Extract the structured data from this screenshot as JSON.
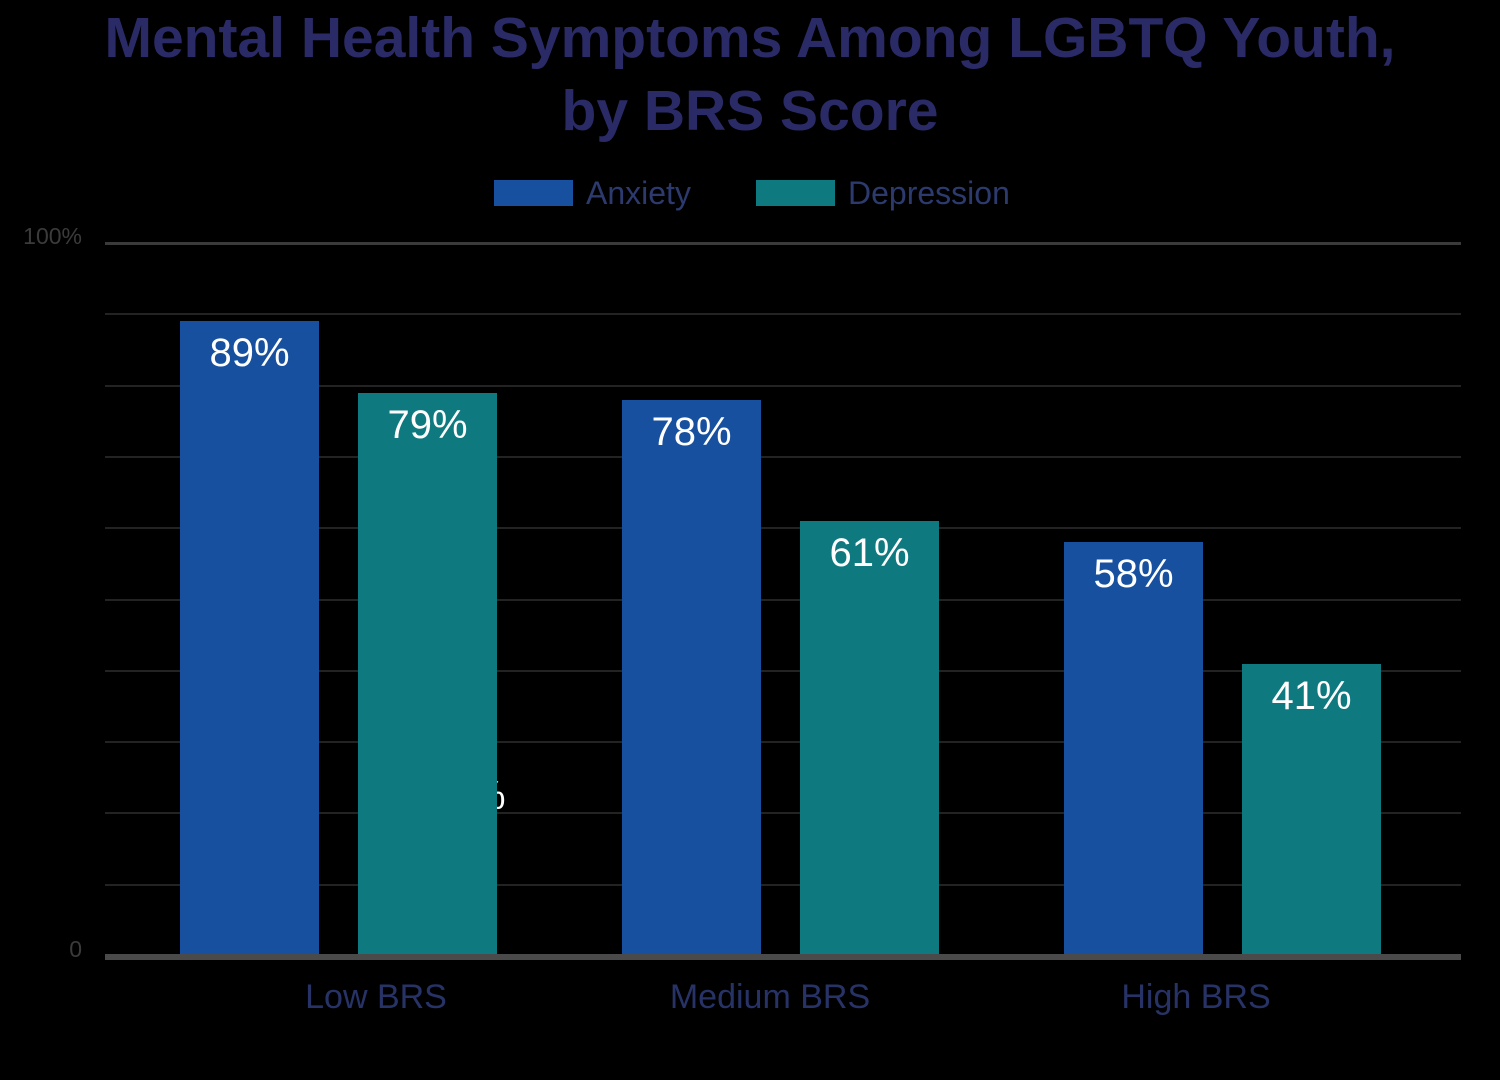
{
  "title": {
    "line1": "Mental Health Symptoms Among LGBTQ Youth,",
    "line2": "by BRS Score"
  },
  "y_axis": {
    "top_tick": "100%",
    "bottom_tick": "0"
  },
  "x_axis": {
    "labels": [
      "Low BRS",
      "Medium BRS",
      "High BRS"
    ]
  },
  "artifact": {
    "text": "%"
  },
  "colors": {
    "background": "#000000",
    "anxiety_blue": "#17509E",
    "depression_teal": "#0E7A80",
    "title_text": "#2A2A67",
    "legend_text": "#2C3A6E",
    "category_label_text": "#273366",
    "tick_label_text": "#3B3B3B",
    "data_label_text": "#FFFFFF",
    "gridline": "#232323",
    "top_gridline": "#3A3A3A",
    "axis_line": "#4A4A4A"
  },
  "chart_data": {
    "type": "bar",
    "title": "Mental Health Symptoms Among LGBTQ Youth, by BRS Score",
    "categories": [
      "Low BRS",
      "Medium BRS",
      "High BRS"
    ],
    "series": [
      {
        "name": "Anxiety",
        "color": "#17509E",
        "values": [
          89,
          78,
          58
        ]
      },
      {
        "name": "Depression",
        "color": "#0E7A80",
        "values": [
          79,
          61,
          41
        ]
      }
    ],
    "data_labels": [
      "89%",
      "79%",
      "78%",
      "61%",
      "58%",
      "41%"
    ],
    "value_suffix": "%",
    "ylim": [
      0,
      100
    ],
    "y_ticks_visible": [
      "100%",
      "0"
    ],
    "gridlines": "horizontal, every 10%",
    "legend_position": "top-center",
    "legend_entries": [
      "Anxiety",
      "Depression"
    ],
    "background": "#000000"
  }
}
